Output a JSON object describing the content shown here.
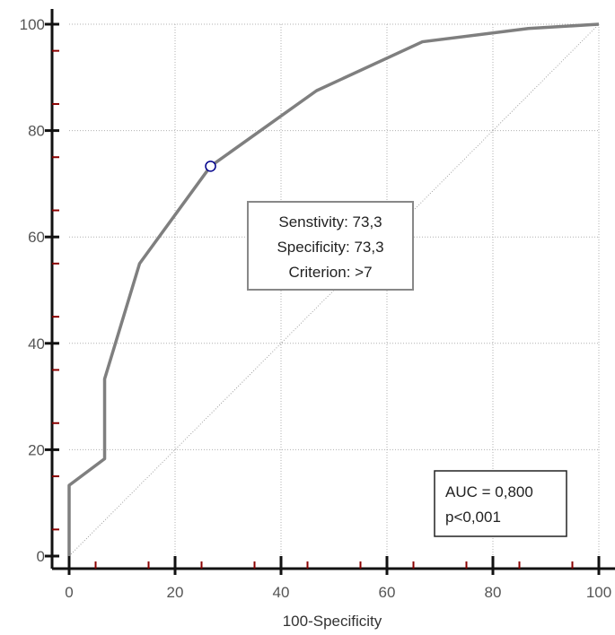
{
  "chart_data": {
    "type": "line",
    "xlabel": "100-Specificity",
    "ylabel": "",
    "xlim": [
      0,
      100
    ],
    "ylim": [
      0,
      100
    ],
    "x_ticks": [
      "0",
      "20",
      "40",
      "60",
      "80",
      "100"
    ],
    "y_ticks": [
      "0",
      "20",
      "40",
      "60",
      "80",
      "100"
    ],
    "grid": true,
    "series": [
      {
        "values_xy": [
          [
            0,
            0
          ],
          [
            0,
            13.3
          ],
          [
            6.7,
            18.3
          ],
          [
            6.7,
            33.3
          ],
          [
            13.3,
            55
          ],
          [
            26.7,
            73.3
          ],
          [
            46.7,
            87.5
          ],
          [
            66.7,
            96.7
          ],
          [
            86.7,
            99.2
          ],
          [
            100,
            100
          ]
        ]
      }
    ],
    "reference_line": [
      [
        0,
        0
      ],
      [
        100,
        100
      ]
    ],
    "highlight_point": [
      26.7,
      73.3
    ],
    "criterion_box": {
      "line1": "Senstivity: 73,3",
      "line2": "Specificity: 73,3",
      "line3": "Criterion: >7"
    },
    "auc_box": {
      "line1": "AUC = 0,800",
      "line2": "p<0,001"
    },
    "colors": {
      "curve": "#7f7f7f",
      "axis": "#111111",
      "minor_tick": "#8b0000",
      "grid": "#b0b0b0",
      "point": "#00008b"
    }
  }
}
